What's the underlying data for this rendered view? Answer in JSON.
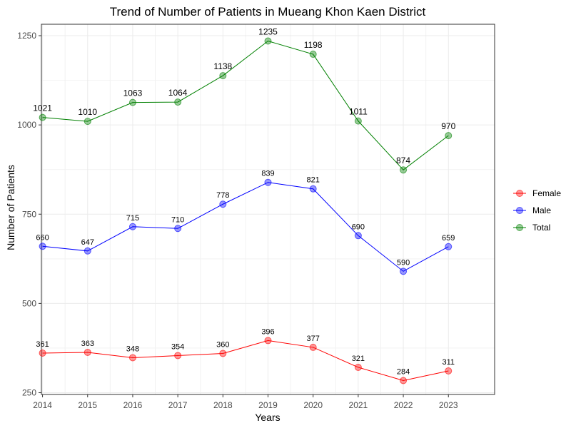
{
  "chart_data": {
    "type": "line",
    "title": "Trend of Number of Patients in Mueang Khon Kaen District",
    "xlabel": "Years",
    "ylabel": "Number of Patients",
    "x": [
      2014,
      2015,
      2016,
      2017,
      2018,
      2019,
      2020,
      2021,
      2022,
      2023
    ],
    "xlim": [
      2013.975,
      2024.025
    ],
    "ylim": [
      245,
      1282
    ],
    "yticks": [
      250,
      500,
      750,
      1000,
      1250
    ],
    "grid": true,
    "legend_position": "right",
    "series": [
      {
        "name": "Female",
        "color": "#ff0000",
        "values": [
          361,
          363,
          348,
          354,
          360,
          396,
          377,
          321,
          284,
          311
        ]
      },
      {
        "name": "Male",
        "color": "#0000ff",
        "values": [
          660,
          647,
          715,
          710,
          778,
          839,
          821,
          690,
          590,
          659
        ]
      },
      {
        "name": "Total",
        "color": "#008000",
        "values": [
          1021,
          1010,
          1063,
          1064,
          1138,
          1235,
          1198,
          1011,
          874,
          970
        ]
      }
    ]
  }
}
